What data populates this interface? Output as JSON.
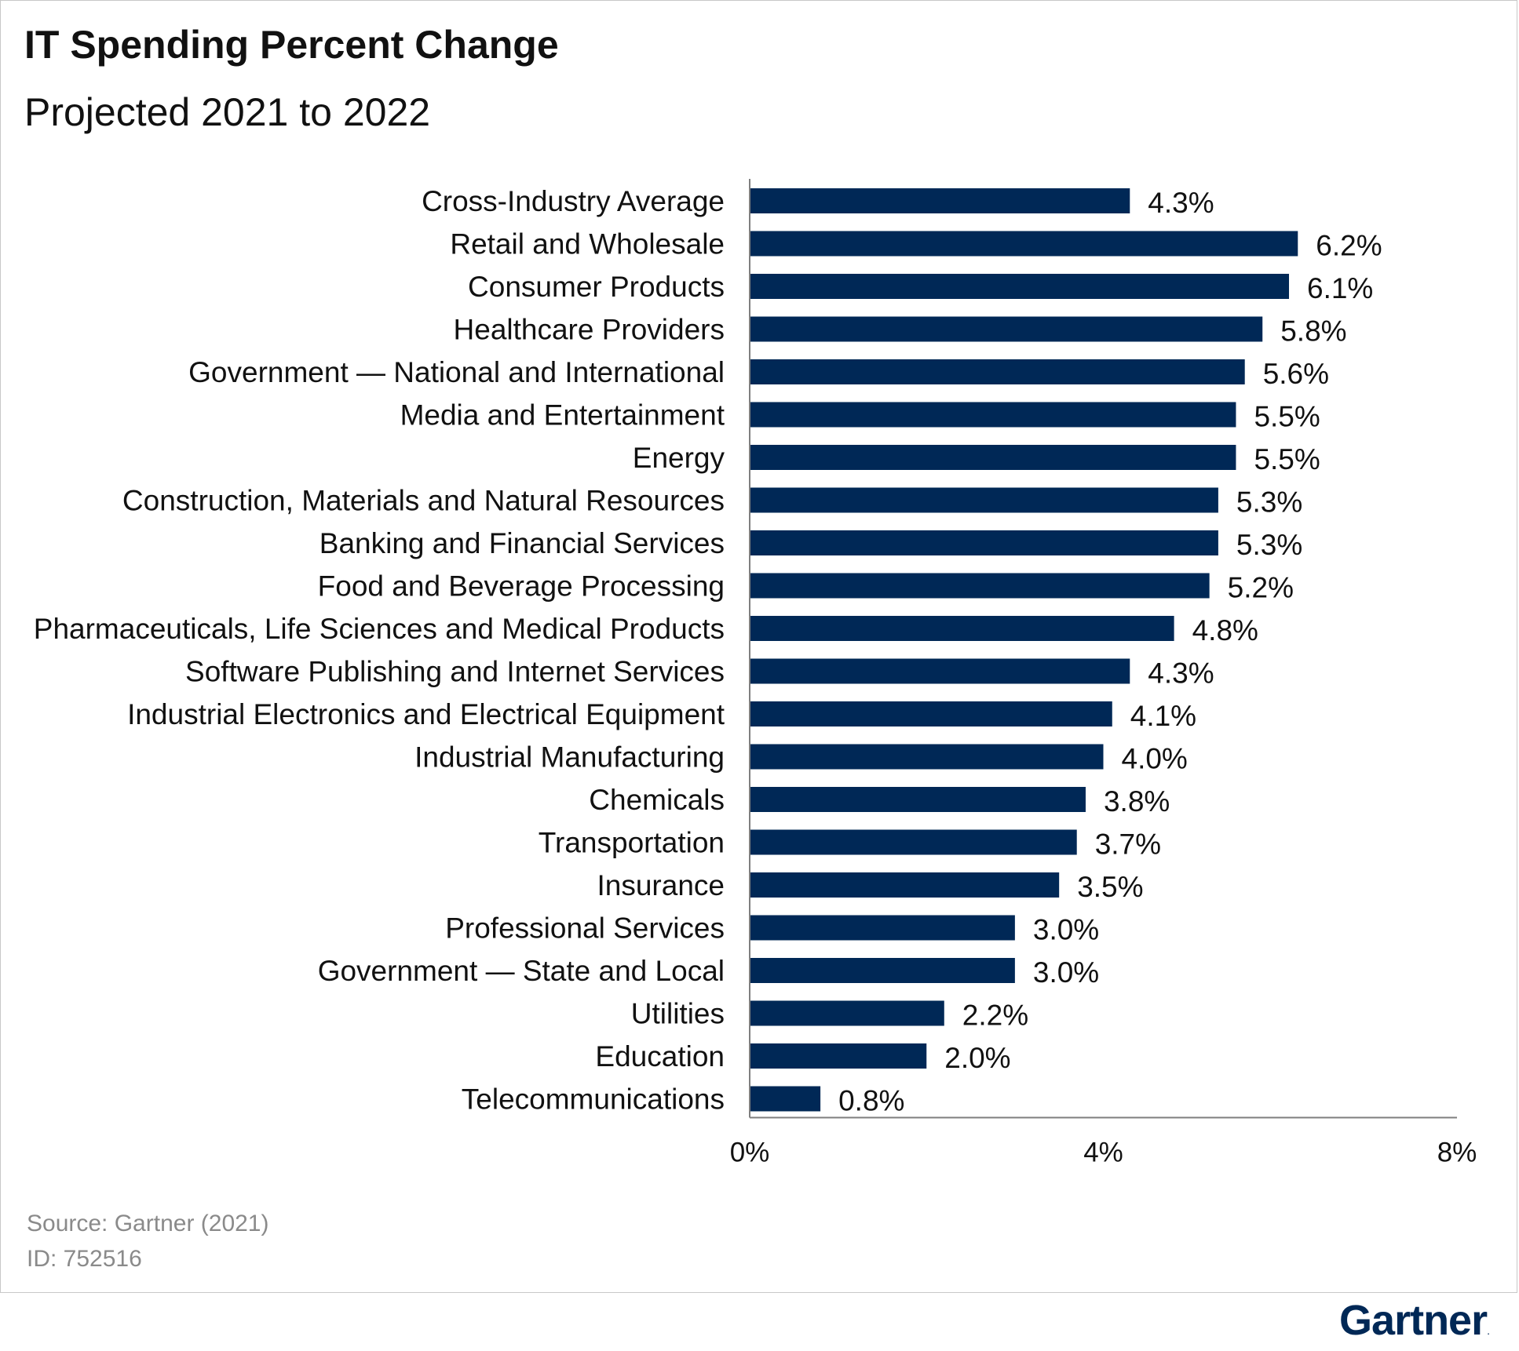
{
  "header": {
    "title": "IT Spending Percent Change",
    "subtitle": "Projected 2021 to 2022"
  },
  "footer": {
    "source": "Source: Gartner (2021)",
    "id": "ID: 752516",
    "logo_text": "Gartner",
    "logo_mark": "."
  },
  "colors": {
    "bar": "#002856",
    "text": "#111111",
    "axis": "#7f7f7f",
    "footer_text": "#8a8a8a"
  },
  "chart_data": {
    "type": "bar",
    "orientation": "horizontal",
    "title": "IT Spending Percent Change",
    "subtitle": "Projected 2021 to 2022",
    "categories": [
      "Cross-Industry Average",
      "Retail and Wholesale",
      "Consumer Products",
      "Healthcare Providers",
      "Government — National and International",
      "Media and Entertainment",
      "Energy",
      "Construction, Materials and Natural Resources",
      "Banking and Financial Services",
      "Food and Beverage Processing",
      "Pharmaceuticals, Life Sciences and Medical Products",
      "Software Publishing and Internet Services",
      "Industrial Electronics and Electrical Equipment",
      "Industrial Manufacturing",
      "Chemicals",
      "Transportation",
      "Insurance",
      "Professional Services",
      "Government — State and Local",
      "Utilities",
      "Education",
      "Telecommunications"
    ],
    "values": [
      4.3,
      6.2,
      6.1,
      5.8,
      5.6,
      5.5,
      5.5,
      5.3,
      5.3,
      5.2,
      4.8,
      4.3,
      4.1,
      4.0,
      3.8,
      3.7,
      3.5,
      3.0,
      3.0,
      2.2,
      2.0,
      0.8
    ],
    "value_labels": [
      "4.3%",
      "6.2%",
      "6.1%",
      "5.8%",
      "5.6%",
      "5.5%",
      "5.5%",
      "5.3%",
      "5.3%",
      "5.2%",
      "4.8%",
      "4.3%",
      "4.1%",
      "4.0%",
      "3.8%",
      "3.7%",
      "3.5%",
      "3.0%",
      "3.0%",
      "2.2%",
      "2.0%",
      "0.8%"
    ],
    "xlim": [
      0,
      8
    ],
    "xticks": [
      0,
      4,
      8
    ],
    "xtick_labels": [
      "0%",
      "4%",
      "8%"
    ],
    "xlabel": "",
    "ylabel": "",
    "grid": false,
    "legend": false
  }
}
